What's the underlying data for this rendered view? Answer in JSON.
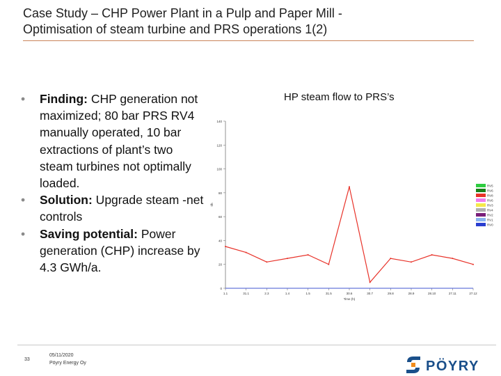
{
  "slide": {
    "title_line1": "Case Study – CHP Power Plant in a Pulp and Paper Mill -",
    "title_line2": "Optimisation of steam turbine and PRS operations 1(2)",
    "bullets": [
      {
        "bold": "Finding:",
        "text": " CHP generation not maximized; 80 bar PRS RV4 manually operated, 10 bar extractions of plant’s two steam turbines not optimally loaded."
      },
      {
        "bold": "Solution:",
        "text": " Upgrade steam -net controls"
      },
      {
        "bold": "Saving potential:",
        "text": " Power generation (CHP) increase by 4.3 GWh/a."
      }
    ],
    "chart_title": "HP steam flow to PRS’s"
  },
  "footer": {
    "page_number": "33",
    "date": "05/11/2020",
    "company": "Pöyry Energy Oy",
    "logo_text": "PÖYRY"
  },
  "chart_data": {
    "type": "line",
    "title": "",
    "xlabel": "Time (h)",
    "ylabel": "t/h",
    "ylim": [
      0,
      140
    ],
    "yticks": [
      0,
      20,
      40,
      60,
      80,
      100,
      120,
      140
    ],
    "categories": [
      "1.1",
      "31.1",
      "2.3",
      "1.4",
      "1.5",
      "31.5",
      "30.6",
      "30.7",
      "29.8",
      "28.9",
      "28.10",
      "27.11",
      "27.12"
    ],
    "legend_position": "right",
    "grid": false,
    "series": [
      {
        "name": "RV5",
        "color": "#2ecc40",
        "values": [
          0,
          0,
          0,
          0,
          0,
          0,
          0,
          0,
          0,
          0,
          0,
          0,
          0
        ]
      },
      {
        "name": "RV6",
        "color": "#1a7f1a",
        "values": [
          0,
          0,
          0,
          0,
          0,
          0,
          0,
          0,
          0,
          0,
          0,
          0,
          0
        ]
      },
      {
        "name": "RV8",
        "color": "#e8332a",
        "values": [
          35,
          30,
          22,
          25,
          28,
          20,
          85,
          5,
          25,
          22,
          28,
          25,
          20
        ]
      },
      {
        "name": "RV6",
        "color": "#f07cf0",
        "values": [
          0,
          0,
          0,
          0,
          0,
          0,
          0,
          0,
          0,
          0,
          0,
          0,
          0
        ]
      },
      {
        "name": "RV3",
        "color": "#f5e94a",
        "values": [
          0,
          0,
          0,
          0,
          0,
          0,
          0,
          0,
          0,
          0,
          0,
          0,
          0
        ]
      },
      {
        "name": "RV4",
        "color": "#b0b0b0",
        "values": [
          0,
          0,
          0,
          0,
          0,
          0,
          0,
          0,
          0,
          0,
          0,
          0,
          0
        ]
      },
      {
        "name": "RV2",
        "color": "#7a1f7a",
        "values": [
          0,
          0,
          0,
          0,
          0,
          0,
          0,
          0,
          0,
          0,
          0,
          0,
          0
        ]
      },
      {
        "name": "RV1",
        "color": "#8ab4f0",
        "values": [
          0,
          0,
          0,
          0,
          0,
          0,
          0,
          0,
          0,
          0,
          0,
          0,
          0
        ]
      },
      {
        "name": "RV0",
        "color": "#2a3fd0",
        "values": [
          0,
          0,
          0,
          0,
          0,
          0,
          0,
          0,
          0,
          0,
          0,
          0,
          0
        ]
      }
    ]
  }
}
